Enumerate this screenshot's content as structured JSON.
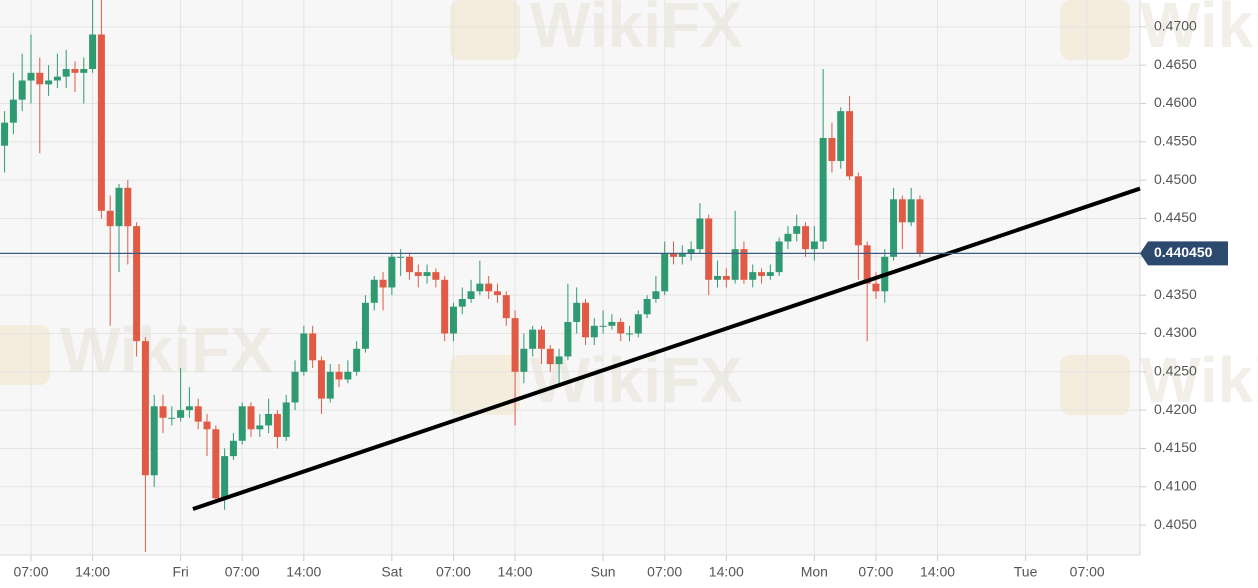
{
  "chart_data": {
    "type": "candlestick",
    "watermark": "WikiFX",
    "up_color": "#2f9a72",
    "down_color": "#e05a45",
    "x": [
      4,
      5,
      6,
      7,
      8,
      9,
      10,
      11,
      12,
      13,
      14,
      15,
      16,
      17,
      18,
      19,
      20,
      21,
      22,
      23,
      24,
      25,
      26,
      27,
      28,
      29,
      30,
      31,
      32,
      33,
      34,
      35,
      36,
      37,
      38,
      39,
      40,
      41,
      42,
      43,
      44,
      45,
      46,
      47,
      48,
      49,
      50,
      51,
      52,
      53,
      54,
      55,
      56,
      57,
      58,
      59,
      60,
      61,
      62,
      63,
      64,
      65,
      66,
      67,
      68,
      69,
      70,
      71,
      72,
      73,
      74,
      75,
      76,
      77,
      78,
      79,
      80,
      81,
      82,
      83,
      84,
      85,
      86,
      87,
      88,
      89,
      90,
      91,
      92,
      93,
      94,
      95,
      96,
      97,
      98,
      99,
      100,
      101,
      102,
      103,
      104,
      105,
      106,
      107,
      108
    ],
    "open": [
      0.4545,
      0.4575,
      0.4605,
      0.463,
      0.464,
      0.4625,
      0.463,
      0.4635,
      0.4645,
      0.464,
      0.4645,
      0.469,
      0.446,
      0.444,
      0.449,
      0.444,
      0.429,
      0.4115,
      0.4205,
      0.419,
      0.419,
      0.42,
      0.4205,
      0.4185,
      0.4175,
      0.4085,
      0.414,
      0.416,
      0.4205,
      0.4175,
      0.418,
      0.4195,
      0.4165,
      0.421,
      0.425,
      0.43,
      0.4265,
      0.4215,
      0.425,
      0.424,
      0.425,
      0.428,
      0.434,
      0.437,
      0.436,
      0.44,
      0.44,
      0.438,
      0.4375,
      0.438,
      0.437,
      0.43,
      0.4335,
      0.4345,
      0.4355,
      0.4365,
      0.4355,
      0.435,
      0.432,
      0.425,
      0.428,
      0.4305,
      0.428,
      0.426,
      0.427,
      0.4315,
      0.434,
      0.4295,
      0.431,
      0.431,
      0.4315,
      0.43,
      0.43,
      0.4325,
      0.4345,
      0.4355,
      0.4405,
      0.44,
      0.4405,
      0.441,
      0.445,
      0.437,
      0.4375,
      0.437,
      0.441,
      0.437,
      0.438,
      0.4375,
      0.438,
      0.442,
      0.443,
      0.444,
      0.441,
      0.442,
      0.4555,
      0.4525,
      0.459,
      0.4505,
      0.4415,
      0.4365,
      0.4355,
      0.44,
      0.4475,
      0.4445,
      0.4475
    ],
    "high": [
      0.459,
      0.464,
      0.4665,
      0.469,
      0.466,
      0.465,
      0.4665,
      0.467,
      0.4655,
      0.466,
      0.4735,
      0.4735,
      0.448,
      0.4495,
      0.45,
      0.4445,
      0.4295,
      0.422,
      0.422,
      0.4205,
      0.4255,
      0.423,
      0.4215,
      0.4195,
      0.418,
      0.415,
      0.417,
      0.421,
      0.421,
      0.4195,
      0.4215,
      0.42,
      0.422,
      0.4265,
      0.431,
      0.431,
      0.427,
      0.426,
      0.426,
      0.4265,
      0.429,
      0.435,
      0.4375,
      0.438,
      0.4405,
      0.441,
      0.4405,
      0.439,
      0.439,
      0.4385,
      0.4375,
      0.434,
      0.436,
      0.437,
      0.4395,
      0.4375,
      0.4365,
      0.4355,
      0.433,
      0.43,
      0.431,
      0.431,
      0.4285,
      0.428,
      0.4365,
      0.436,
      0.4345,
      0.432,
      0.433,
      0.4325,
      0.432,
      0.431,
      0.433,
      0.435,
      0.4375,
      0.442,
      0.442,
      0.4415,
      0.442,
      0.447,
      0.4455,
      0.4395,
      0.4385,
      0.446,
      0.442,
      0.439,
      0.4385,
      0.439,
      0.4425,
      0.444,
      0.4455,
      0.4445,
      0.444,
      0.4645,
      0.4575,
      0.4595,
      0.461,
      0.451,
      0.442,
      0.438,
      0.441,
      0.449,
      0.448,
      0.449,
      0.448
    ],
    "low": [
      0.451,
      0.456,
      0.459,
      0.46,
      0.4535,
      0.461,
      0.462,
      0.462,
      0.4615,
      0.46,
      0.464,
      0.445,
      0.431,
      0.438,
      0.439,
      0.427,
      0.4015,
      0.41,
      0.417,
      0.418,
      0.4185,
      0.419,
      0.4175,
      0.414,
      0.408,
      0.407,
      0.4135,
      0.4155,
      0.4165,
      0.4165,
      0.417,
      0.415,
      0.416,
      0.42,
      0.4245,
      0.4255,
      0.4195,
      0.421,
      0.423,
      0.4235,
      0.4245,
      0.4275,
      0.433,
      0.433,
      0.435,
      0.4375,
      0.437,
      0.436,
      0.4365,
      0.436,
      0.429,
      0.429,
      0.4325,
      0.434,
      0.435,
      0.4345,
      0.434,
      0.431,
      0.418,
      0.4235,
      0.427,
      0.426,
      0.425,
      0.423,
      0.4265,
      0.43,
      0.4285,
      0.4285,
      0.43,
      0.4305,
      0.429,
      0.429,
      0.4295,
      0.432,
      0.434,
      0.435,
      0.439,
      0.439,
      0.4395,
      0.4405,
      0.435,
      0.436,
      0.436,
      0.4365,
      0.4365,
      0.436,
      0.4365,
      0.437,
      0.4375,
      0.441,
      0.442,
      0.44,
      0.4395,
      0.441,
      0.451,
      0.4515,
      0.45,
      0.437,
      0.429,
      0.4345,
      0.434,
      0.4395,
      0.441,
      0.444,
      0.44
    ],
    "close": [
      0.4575,
      0.4605,
      0.463,
      0.464,
      0.4625,
      0.463,
      0.4635,
      0.4645,
      0.464,
      0.4645,
      0.469,
      0.446,
      0.444,
      0.449,
      0.444,
      0.429,
      0.4115,
      0.4205,
      0.419,
      0.419,
      0.42,
      0.4205,
      0.4185,
      0.4175,
      0.4085,
      0.414,
      0.416,
      0.4205,
      0.4175,
      0.418,
      0.4195,
      0.4165,
      0.421,
      0.425,
      0.43,
      0.4265,
      0.4215,
      0.425,
      0.424,
      0.425,
      0.428,
      0.434,
      0.437,
      0.436,
      0.44,
      0.44,
      0.438,
      0.4375,
      0.438,
      0.437,
      0.43,
      0.4335,
      0.4345,
      0.4355,
      0.4365,
      0.4355,
      0.435,
      0.432,
      0.425,
      0.428,
      0.4305,
      0.428,
      0.426,
      0.427,
      0.4315,
      0.434,
      0.4295,
      0.431,
      0.431,
      0.4315,
      0.43,
      0.43,
      0.4325,
      0.4345,
      0.4355,
      0.4405,
      0.44,
      0.4405,
      0.441,
      0.445,
      0.437,
      0.4375,
      0.437,
      0.441,
      0.437,
      0.438,
      0.4375,
      0.438,
      0.442,
      0.443,
      0.444,
      0.441,
      0.442,
      0.4555,
      0.4525,
      0.459,
      0.4505,
      0.4415,
      0.4365,
      0.4355,
      0.44,
      0.4475,
      0.4445,
      0.4475,
      0.4405
    ],
    "price_line": {
      "value": 0.44045,
      "label": "0.440450"
    },
    "trendline": {
      "x": [
        25.4,
        133
      ],
      "y": [
        0.4071,
        0.4489
      ]
    },
    "xlim": [
      3.48,
      133
    ],
    "ylim": [
      0.4011,
      0.4735
    ],
    "xticks": [
      {
        "value": 7,
        "label": "07:00"
      },
      {
        "value": 14,
        "label": "14:00"
      },
      {
        "value": 24,
        "label": "Fri"
      },
      {
        "value": 31,
        "label": "07:00"
      },
      {
        "value": 38,
        "label": "14:00"
      },
      {
        "value": 48,
        "label": "Sat"
      },
      {
        "value": 55,
        "label": "07:00"
      },
      {
        "value": 62,
        "label": "14:00"
      },
      {
        "value": 72,
        "label": "Sun"
      },
      {
        "value": 79,
        "label": "07:00"
      },
      {
        "value": 86,
        "label": "14:00"
      },
      {
        "value": 96,
        "label": "Mon"
      },
      {
        "value": 103,
        "label": "07:00"
      },
      {
        "value": 110,
        "label": "14:00"
      },
      {
        "value": 120,
        "label": "Tue"
      },
      {
        "value": 127,
        "label": "07:00"
      }
    ],
    "yticks": [
      {
        "value": 0.405,
        "label": "0.4050"
      },
      {
        "value": 0.41,
        "label": "0.4100"
      },
      {
        "value": 0.415,
        "label": "0.4150"
      },
      {
        "value": 0.42,
        "label": "0.4200"
      },
      {
        "value": 0.425,
        "label": "0.4250"
      },
      {
        "value": 0.43,
        "label": "0.4300"
      },
      {
        "value": 0.435,
        "label": "0.4350"
      },
      {
        "value": 0.44,
        "label": "0.4400"
      },
      {
        "value": 0.445,
        "label": "0.4450"
      },
      {
        "value": 0.45,
        "label": "0.4500"
      },
      {
        "value": 0.455,
        "label": "0.4550"
      },
      {
        "value": 0.46,
        "label": "0.4600"
      },
      {
        "value": 0.465,
        "label": "0.4650"
      },
      {
        "value": 0.47,
        "label": "0.4700"
      }
    ],
    "grid": true
  }
}
